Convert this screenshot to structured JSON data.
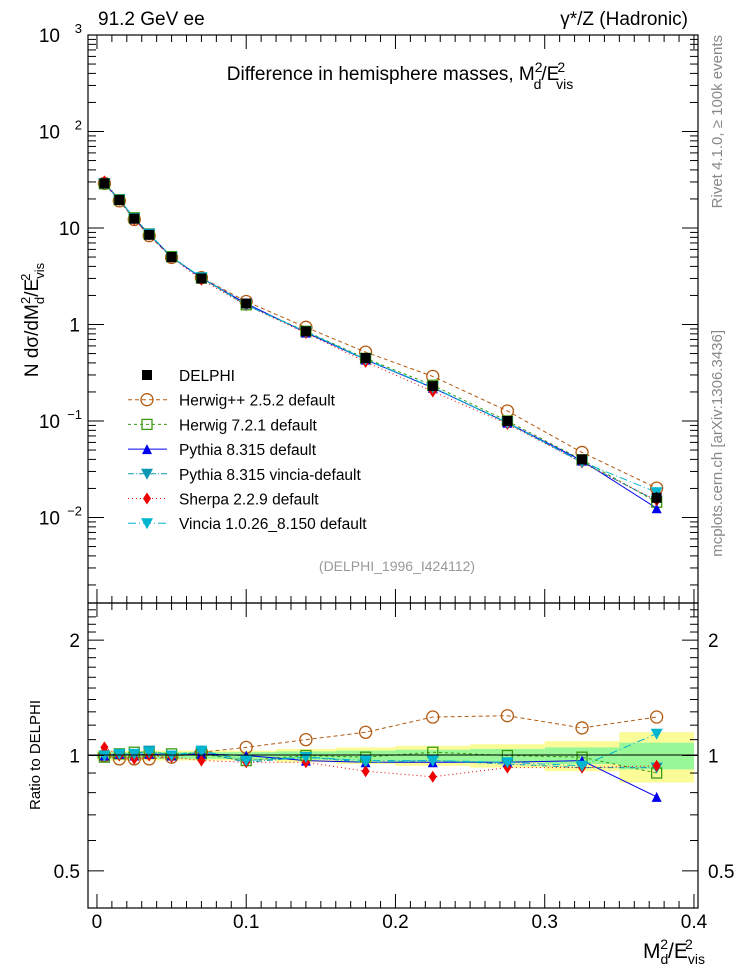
{
  "header": {
    "left": "91.2 GeV ee",
    "right": "γ*/Z (Hadronic)"
  },
  "side_text": {
    "rivet": "Rivet 4.1.0, ≥ 100k events",
    "mcplots": "mcplots.cern.ch [arXiv:1306.3436]"
  },
  "chart_data": {
    "type": "line",
    "title": "Difference in hemisphere masses, M_d^2/E_vis^2",
    "title_parts": {
      "main": "Difference in hemisphere masses, M",
      "sup": "2",
      "sub": "d",
      "rest": "/E",
      "rest_sup": "2",
      "rest_sub": "vis"
    },
    "analysis_label": "(DELPHI_1996_I424112)",
    "ylabel": {
      "prefix": "N  dσ/dM",
      "sub": "d",
      "sup": "2",
      "mid": "/E",
      "sub2": "vis",
      "sup2": "2"
    },
    "xlabel": {
      "main": "M",
      "sub": "d",
      "sup": "2",
      "mid": "/E",
      "sub2": "vis",
      "sup2": "2"
    },
    "ratio_ylabel": "Ratio to DELPHI",
    "xlim": [
      -0.006,
      0.4027
    ],
    "ylim": [
      0.0013,
      1000
    ],
    "yscale": "log",
    "ratio_ylim": [
      0.4,
      2.5
    ],
    "x_ticks": [
      {
        "v": 0,
        "label": "0"
      },
      {
        "v": 0.1,
        "label": "0.1"
      },
      {
        "v": 0.2,
        "label": "0.2"
      },
      {
        "v": 0.3,
        "label": "0.3"
      },
      {
        "v": 0.4,
        "label": "0.4"
      }
    ],
    "y_ticks": [
      {
        "v": 1000,
        "base": "10",
        "exp": "3"
      },
      {
        "v": 100,
        "base": "10",
        "exp": "2"
      },
      {
        "v": 10,
        "base": "10",
        "exp": ""
      },
      {
        "v": 1,
        "base": "1",
        "exp": ""
      },
      {
        "v": 0.1,
        "base": "10",
        "exp": "−1"
      },
      {
        "v": 0.01,
        "base": "10",
        "exp": "−2"
      }
    ],
    "ratio_ticks": [
      {
        "v": 2,
        "label": "2"
      },
      {
        "v": 1,
        "label": "1"
      },
      {
        "v": 0.5,
        "label": "0.5"
      }
    ],
    "bin_edges": [
      0,
      0.01,
      0.02,
      0.03,
      0.04,
      0.06,
      0.08,
      0.12,
      0.16,
      0.2,
      0.25,
      0.3,
      0.35,
      0.4
    ],
    "x": [
      0.005,
      0.015,
      0.025,
      0.035,
      0.05,
      0.07,
      0.1,
      0.14,
      0.18,
      0.225,
      0.275,
      0.325,
      0.375
    ],
    "reference": {
      "name": "DELPHI",
      "color": "#000000",
      "values": [
        29,
        19.5,
        12.5,
        8.5,
        5.0,
        3.0,
        1.65,
        0.85,
        0.45,
        0.23,
        0.1,
        0.04,
        0.016
      ],
      "band_total": [
        0.03,
        0.03,
        0.03,
        0.03,
        0.03,
        0.03,
        0.03,
        0.04,
        0.05,
        0.06,
        0.07,
        0.09,
        0.15
      ],
      "band_stat": [
        0.02,
        0.02,
        0.02,
        0.02,
        0.02,
        0.02,
        0.02,
        0.025,
        0.03,
        0.035,
        0.04,
        0.05,
        0.08
      ]
    },
    "series": [
      {
        "name": "Herwig++ 2.5.2 default",
        "color": "#b35a10",
        "marker": "circle",
        "dash": "4,3",
        "ratio": [
          1.0,
          0.98,
          0.98,
          0.98,
          0.99,
          1.02,
          1.05,
          1.1,
          1.15,
          1.26,
          1.27,
          1.18,
          1.26
        ]
      },
      {
        "name": "Herwig 7.2.1 default",
        "color": "#3a9a12",
        "marker": "square",
        "dash": "3,3",
        "ratio": [
          0.99,
          1.01,
          1.02,
          1.02,
          1.01,
          1.01,
          0.97,
          1.0,
          0.99,
          1.02,
          1.0,
          0.99,
          0.9
        ]
      },
      {
        "name": "Pythia 8.315 default",
        "color": "#0000ee",
        "marker": "triangle-up",
        "dash": "",
        "ratio": [
          1.0,
          1.01,
          1.0,
          1.01,
          1.0,
          1.01,
          1.0,
          0.97,
          0.96,
          0.96,
          0.96,
          0.97,
          0.78
        ]
      },
      {
        "name": "Pythia 8.315 vincia-default",
        "color": "#0e98b4",
        "marker": "triangle-down",
        "dash": "6,2,1,2",
        "ratio": [
          1.0,
          1.0,
          1.01,
          1.03,
          1.0,
          1.02,
          0.96,
          0.99,
          0.96,
          0.97,
          0.95,
          0.93,
          0.93
        ]
      },
      {
        "name": "Sherpa 2.2.9 default",
        "color": "#ee0000",
        "marker": "diamond",
        "dash": "1,3",
        "ratio": [
          1.05,
          1.0,
          0.98,
          1.0,
          0.99,
          0.97,
          0.96,
          0.96,
          0.91,
          0.88,
          0.93,
          0.93,
          0.94
        ]
      },
      {
        "name": "Vincia 1.0.26_8.150 default",
        "color": "#00b5d0",
        "marker": "triangle-down",
        "dash": "8,3,1,3",
        "ratio": [
          1.0,
          1.01,
          1.01,
          1.02,
          1.0,
          1.03,
          0.97,
          0.99,
          0.97,
          0.97,
          0.96,
          0.94,
          1.14
        ]
      }
    ]
  }
}
